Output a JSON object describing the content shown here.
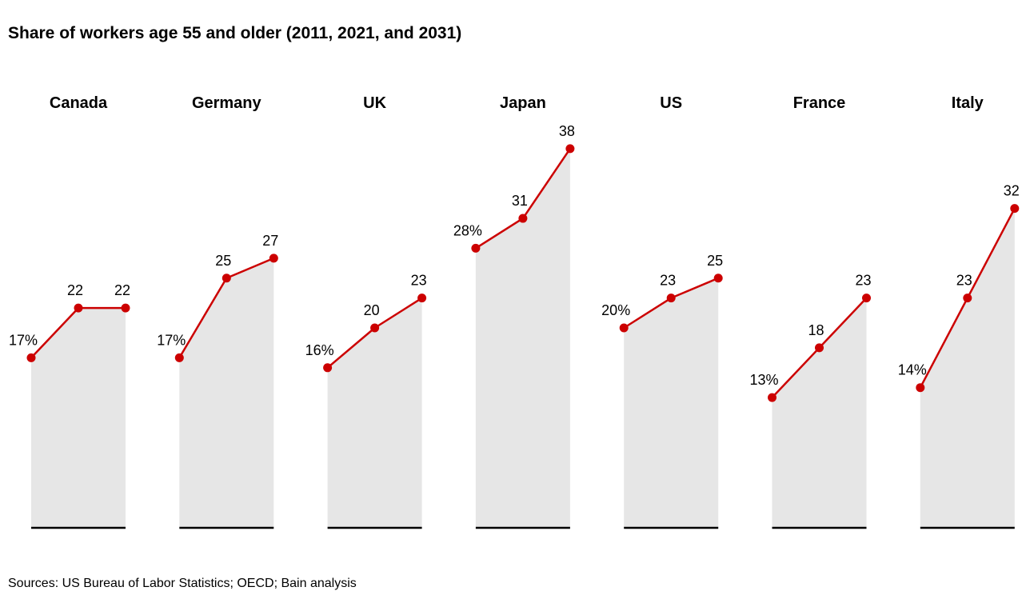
{
  "chart_data": {
    "type": "line",
    "title": "Share of workers age 55 and older (2011, 2021, and 2031)",
    "source": "Sources: US Bureau of Labor Statistics; OECD; Bain analysis",
    "x": [
      "2011",
      "2021",
      "2031"
    ],
    "ylim": [
      0,
      42
    ],
    "series": [
      {
        "name": "Canada",
        "values": [
          17,
          22,
          22
        ],
        "labels": [
          "17%",
          "22",
          "22"
        ]
      },
      {
        "name": "Germany",
        "values": [
          17,
          25,
          27
        ],
        "labels": [
          "17%",
          "25",
          "27"
        ]
      },
      {
        "name": "UK",
        "values": [
          16,
          20,
          23
        ],
        "labels": [
          "16%",
          "20",
          "23"
        ]
      },
      {
        "name": "Japan",
        "values": [
          28,
          31,
          38
        ],
        "labels": [
          "28%",
          "31",
          "38"
        ]
      },
      {
        "name": "US",
        "values": [
          20,
          23,
          25
        ],
        "labels": [
          "20%",
          "23",
          "25"
        ]
      },
      {
        "name": "France",
        "values": [
          13,
          18,
          23
        ],
        "labels": [
          "13%",
          "18",
          "23"
        ]
      },
      {
        "name": "Italy",
        "values": [
          14,
          23,
          32
        ],
        "labels": [
          "14%",
          "23",
          "32"
        ]
      }
    ],
    "colors": {
      "line": "#cc0000",
      "area": "#e6e6e6",
      "baseline": "#000000"
    }
  }
}
